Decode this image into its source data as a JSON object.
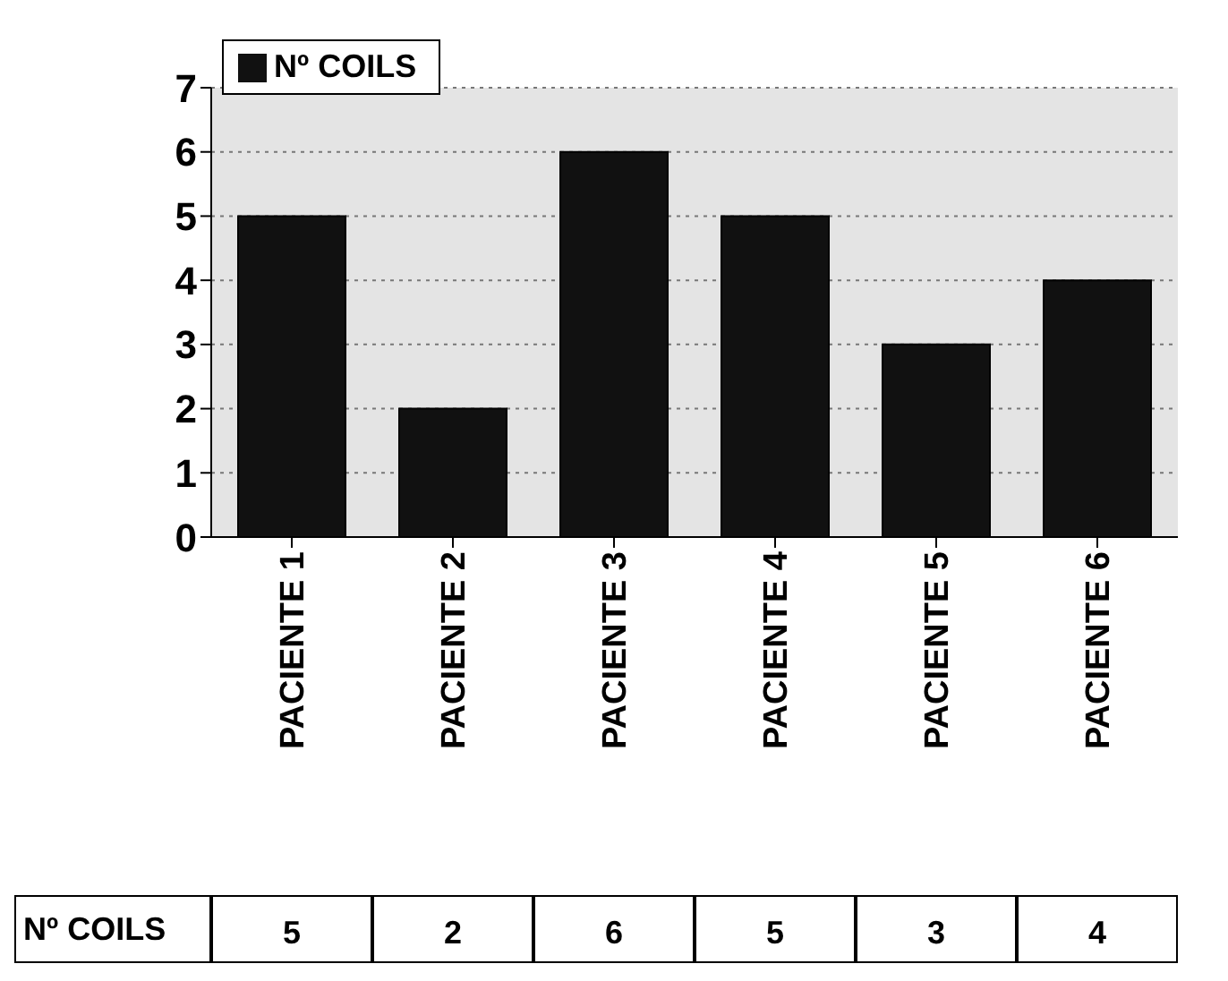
{
  "chart_data": {
    "type": "bar",
    "categories": [
      "PACIENTE 1",
      "PACIENTE 2",
      "PACIENTE 3",
      "PACIENTE 4",
      "PACIENTE 5",
      "PACIENTE 6"
    ],
    "series": [
      {
        "name": "Nº COILS",
        "color": "#111111",
        "values": [
          5,
          2,
          6,
          5,
          3,
          4
        ]
      }
    ],
    "ylim": [
      0,
      7
    ],
    "yticks": [
      0,
      1,
      2,
      3,
      4,
      5,
      6,
      7
    ],
    "grid": "y",
    "legend": "top left",
    "data_labels": true
  }
}
